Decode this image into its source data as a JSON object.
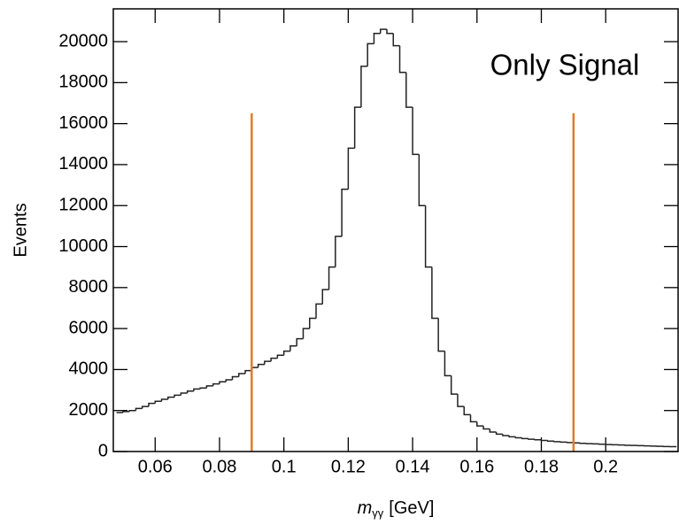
{
  "chart_data": {
    "type": "histogram",
    "annotation": "Only Signal",
    "y_label": "Events",
    "x_label": {
      "symbol": "m",
      "subscript": "γγ",
      "unit": "[GeV]"
    },
    "color": "#222222",
    "bins": [
      0.048,
      0.05,
      0.052,
      0.054,
      0.056,
      0.058,
      0.06,
      0.062,
      0.064,
      0.066,
      0.068,
      0.07,
      0.072,
      0.074,
      0.076,
      0.078,
      0.08,
      0.082,
      0.084,
      0.086,
      0.088,
      0.09,
      0.092,
      0.094,
      0.096,
      0.098,
      0.1,
      0.102,
      0.104,
      0.106,
      0.108,
      0.11,
      0.112,
      0.114,
      0.116,
      0.118,
      0.12,
      0.122,
      0.124,
      0.126,
      0.128,
      0.13,
      0.132,
      0.134,
      0.136,
      0.138,
      0.14,
      0.142,
      0.144,
      0.146,
      0.148,
      0.15,
      0.152,
      0.154,
      0.156,
      0.158,
      0.16,
      0.162,
      0.164,
      0.166,
      0.168,
      0.17,
      0.172,
      0.174,
      0.176,
      0.178,
      0.18,
      0.182,
      0.184,
      0.186,
      0.188,
      0.19,
      0.192,
      0.194,
      0.196,
      0.198,
      0.2,
      0.202,
      0.204,
      0.206,
      0.208,
      0.21,
      0.212,
      0.214,
      0.216,
      0.218,
      0.22,
      0.222
    ],
    "values": [
      1900,
      1950,
      2000,
      2100,
      2200,
      2350,
      2450,
      2550,
      2650,
      2750,
      2850,
      2950,
      3050,
      3100,
      3200,
      3300,
      3400,
      3500,
      3650,
      3800,
      3950,
      4100,
      4250,
      4400,
      4550,
      4700,
      4900,
      5150,
      5500,
      6000,
      6500,
      7200,
      7900,
      9000,
      10500,
      12800,
      14800,
      16800,
      18800,
      19900,
      20400,
      20600,
      20400,
      19800,
      18500,
      16800,
      14500,
      12000,
      9000,
      6500,
      4900,
      3700,
      2800,
      2200,
      1800,
      1450,
      1250,
      1100,
      950,
      850,
      780,
      720,
      670,
      630,
      600,
      570,
      540,
      510,
      480,
      460,
      440,
      420,
      400,
      385,
      370,
      355,
      340,
      330,
      320,
      305,
      295,
      285,
      275,
      265,
      255,
      245,
      235
    ],
    "cut_lines": {
      "x": [
        0.09,
        0.19
      ],
      "y_top": 16500,
      "color": "#e07b2a"
    },
    "xlim": [
      0.047,
      0.2225
    ],
    "ylim": [
      0,
      21600
    ],
    "xticks": [
      0.06,
      0.08,
      0.1,
      0.12,
      0.14,
      0.16,
      0.18,
      0.2
    ],
    "yticks": [
      0,
      2000,
      4000,
      6000,
      8000,
      10000,
      12000,
      14000,
      16000,
      18000,
      20000
    ]
  }
}
